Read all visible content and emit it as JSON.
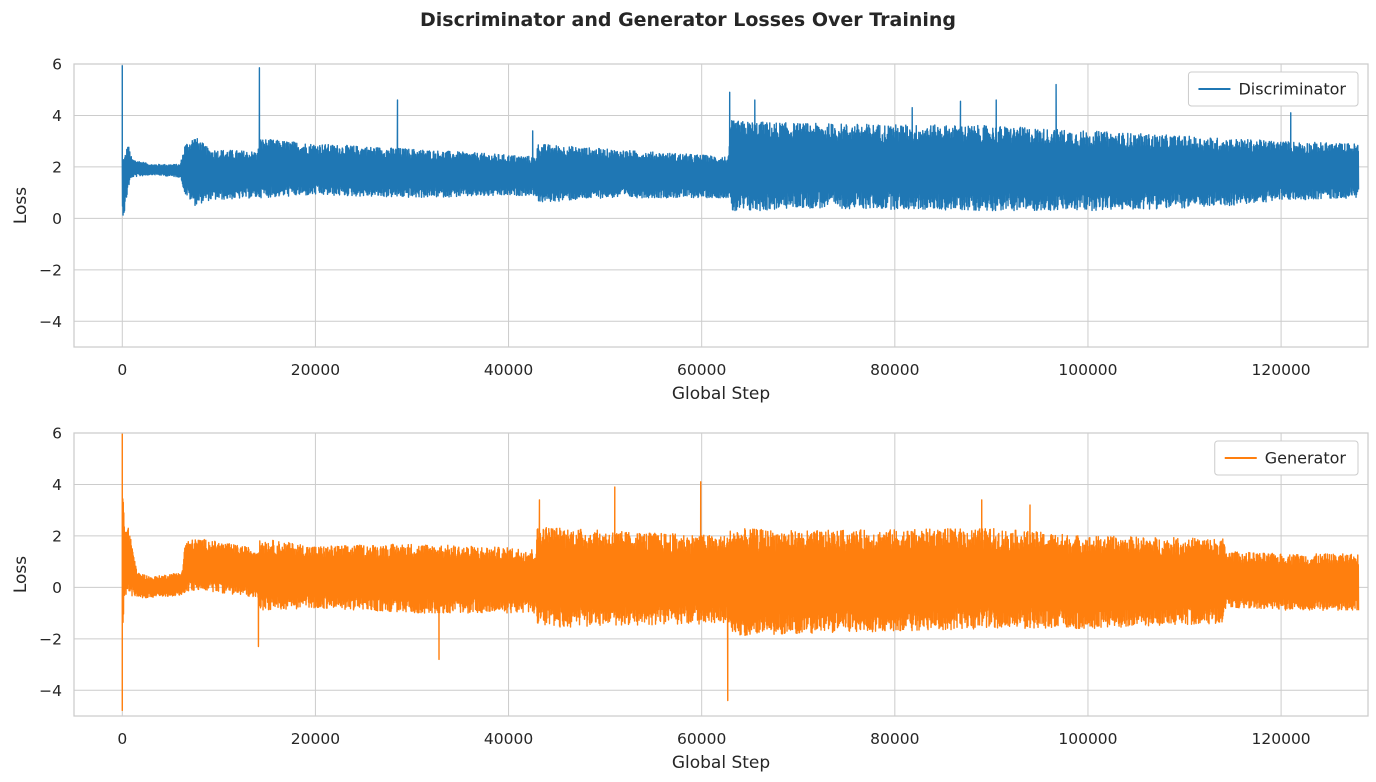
{
  "figure": {
    "title": "Discriminator and Generator Losses Over Training"
  },
  "chart_data": [
    {
      "type": "line",
      "title": "",
      "xlabel": "Global Step",
      "ylabel": "Loss",
      "xlim": [
        -5000,
        129000
      ],
      "ylim": [
        -5,
        6
      ],
      "xticks": [
        0,
        20000,
        40000,
        60000,
        80000,
        100000,
        120000
      ],
      "xtick_labels": [
        "0",
        "20000",
        "40000",
        "60000",
        "80000",
        "100000",
        "120000"
      ],
      "yticks": [
        -4,
        -2,
        0,
        2,
        4,
        6
      ],
      "ytick_labels": [
        "−4",
        "−2",
        "0",
        "2",
        "4",
        "6"
      ],
      "grid": true,
      "legend_position": "top-right",
      "series": [
        {
          "name": "Discriminator",
          "color": "#1f77b4",
          "x_range": [
            0,
            128000
          ],
          "envelope": {
            "x": [
              0,
              200,
              600,
              1000,
              3000,
              6000,
              6500,
              7500,
              9000,
              14000,
              14300,
              20000,
              30000,
              42800,
              43000,
              50000,
              62800,
              63000,
              70000,
              90000,
              100000,
              110000,
              115000,
              120000,
              128000
            ],
            "upper": [
              2.5,
              2.4,
              2.9,
              2.3,
              2.1,
              2.1,
              2.9,
              3.2,
              2.7,
              2.6,
              3.1,
              2.9,
              2.7,
              2.4,
              2.9,
              2.7,
              2.4,
              3.8,
              3.7,
              3.6,
              3.4,
              3.2,
              3.1,
              3.0,
              2.9
            ],
            "lower": [
              0.1,
              0.2,
              1.2,
              1.6,
              1.7,
              1.6,
              0.9,
              0.5,
              0.7,
              0.8,
              0.8,
              0.9,
              0.8,
              0.9,
              0.6,
              0.8,
              0.8,
              0.2,
              0.4,
              0.3,
              0.3,
              0.4,
              0.5,
              0.7,
              0.8
            ]
          },
          "spikes": [
            {
              "x": 0,
              "y": 5.95
            },
            {
              "x": 14200,
              "y": 5.85
            },
            {
              "x": 28500,
              "y": 4.6
            },
            {
              "x": 42500,
              "y": 3.4
            },
            {
              "x": 62900,
              "y": 4.9
            },
            {
              "x": 65500,
              "y": 4.6
            },
            {
              "x": 81800,
              "y": 4.3
            },
            {
              "x": 86800,
              "y": 4.55
            },
            {
              "x": 90500,
              "y": 4.6
            },
            {
              "x": 96700,
              "y": 5.2
            },
            {
              "x": 121000,
              "y": 4.1
            }
          ]
        }
      ]
    },
    {
      "type": "line",
      "title": "",
      "xlabel": "Global Step",
      "ylabel": "Loss",
      "xlim": [
        -5000,
        129000
      ],
      "ylim": [
        -5,
        6
      ],
      "xticks": [
        0,
        20000,
        40000,
        60000,
        80000,
        100000,
        120000
      ],
      "xtick_labels": [
        "0",
        "20000",
        "40000",
        "60000",
        "80000",
        "100000",
        "120000"
      ],
      "yticks": [
        -4,
        -2,
        0,
        2,
        4,
        6
      ],
      "ytick_labels": [
        "−4",
        "−2",
        "0",
        "2",
        "4",
        "6"
      ],
      "grid": true,
      "legend_position": "top-right",
      "series": [
        {
          "name": "Generator",
          "color": "#ff7f0e",
          "x_range": [
            0,
            128000
          ],
          "envelope": {
            "x": [
              0,
              300,
              800,
              1500,
              3000,
              6200,
              6500,
              8000,
              14000,
              14300,
              20000,
              30000,
              42800,
              43000,
              50000,
              62800,
              63000,
              70000,
              90000,
              100000,
              114000,
              114300,
              120000,
              128000
            ],
            "upper": [
              4.0,
              2.5,
              2.2,
              0.6,
              0.4,
              0.6,
              1.8,
              1.9,
              1.5,
              1.9,
              1.6,
              1.7,
              1.5,
              2.4,
              2.2,
              2.0,
              2.3,
              2.2,
              2.3,
              2.0,
              1.9,
              1.4,
              1.3,
              1.3
            ],
            "lower": [
              -2.0,
              -0.3,
              -0.3,
              -0.4,
              -0.4,
              -0.3,
              -0.2,
              -0.1,
              -0.4,
              -0.9,
              -0.8,
              -1.0,
              -1.0,
              -1.6,
              -1.5,
              -1.4,
              -1.9,
              -1.8,
              -1.6,
              -1.6,
              -1.4,
              -0.8,
              -0.9,
              -0.9
            ]
          },
          "spikes": [
            {
              "x": 0,
              "y": 6.0
            },
            {
              "x": 0,
              "y": -4.8
            },
            {
              "x": 14100,
              "y": -2.3
            },
            {
              "x": 32800,
              "y": -2.8
            },
            {
              "x": 43200,
              "y": 3.4
            },
            {
              "x": 51000,
              "y": 3.9
            },
            {
              "x": 59900,
              "y": 4.1
            },
            {
              "x": 62700,
              "y": -4.4
            },
            {
              "x": 89000,
              "y": 3.4
            },
            {
              "x": 94000,
              "y": 3.2
            }
          ]
        }
      ]
    }
  ]
}
